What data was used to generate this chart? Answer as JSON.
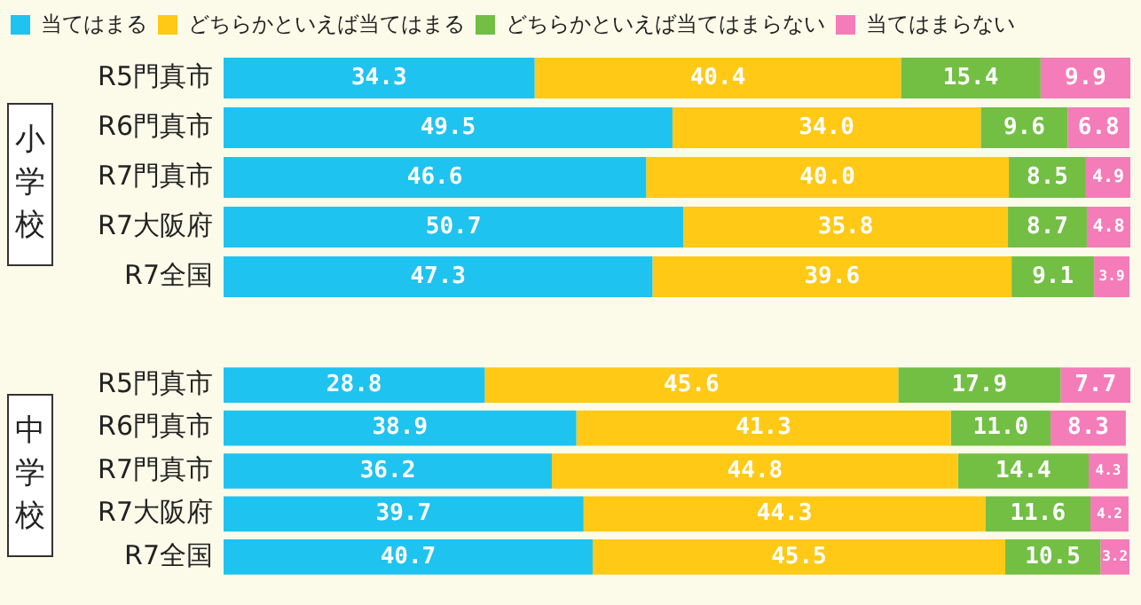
{
  "chart_data": [
    {
      "type": "bar",
      "orientation": "horizontal",
      "stacked": true,
      "ylabel": "小学校",
      "legend": "top left",
      "tick_labels": "y",
      "grid": false,
      "xlim": [
        0,
        100
      ],
      "categories": [
        "R5門真市",
        "R6門真市",
        "R7門真市",
        "R7大阪府",
        "R7全国"
      ],
      "series": [
        {
          "name": "当てはまる",
          "color": "#1ec3f0",
          "values": [
            34.3,
            49.5,
            46.6,
            50.7,
            47.3
          ],
          "value_labels": [
            "34.3",
            "49.5",
            "46.6",
            "50.7",
            "47.3"
          ]
        },
        {
          "name": "どちらかといえば当てはまる",
          "color": "#ffc915",
          "values": [
            40.4,
            34.0,
            40.0,
            35.8,
            39.6
          ],
          "value_labels": [
            "40.4",
            "34.0",
            "40.0",
            "35.8",
            "39.6"
          ]
        },
        {
          "name": "どちらかといえば当てはまらない",
          "color": "#72bf44",
          "values": [
            15.4,
            9.6,
            8.5,
            8.7,
            9.1
          ],
          "value_labels": [
            "15.4",
            "9.6",
            "8.5",
            "8.7",
            "9.1"
          ]
        },
        {
          "name": "当てはまらない",
          "color": "#f47cb8",
          "values": [
            9.9,
            6.8,
            4.9,
            4.8,
            3.9
          ],
          "value_labels": [
            "9.9",
            "6.8",
            "4.9",
            "4.8",
            "3.9"
          ]
        }
      ]
    },
    {
      "type": "bar",
      "orientation": "horizontal",
      "stacked": true,
      "ylabel": "中学校",
      "legend": false,
      "tick_labels": "y",
      "grid": false,
      "xlim": [
        0,
        100
      ],
      "categories": [
        "R5門真市",
        "R6門真市",
        "R7門真市",
        "R7大阪府",
        "R7全国"
      ],
      "series": [
        {
          "color": "#1ec3f0",
          "values": [
            28.8,
            38.9,
            36.2,
            39.7,
            40.7
          ],
          "value_labels": [
            "28.8",
            "38.9",
            "36.2",
            "39.7",
            "40.7"
          ]
        },
        {
          "color": "#ffc915",
          "values": [
            45.6,
            41.3,
            44.8,
            44.3,
            45.5
          ],
          "value_labels": [
            "45.6",
            "41.3",
            "44.8",
            "44.3",
            "45.5"
          ]
        },
        {
          "color": "#72bf44",
          "values": [
            17.9,
            11.0,
            14.4,
            11.6,
            10.5
          ],
          "value_labels": [
            "17.9",
            "11.0",
            "14.4",
            "11.6",
            "10.5"
          ]
        },
        {
          "color": "#f47cb8",
          "values": [
            7.7,
            8.3,
            4.3,
            4.2,
            3.2
          ],
          "value_labels": [
            "7.7",
            "8.3",
            "4.3",
            "4.2",
            "3.2"
          ]
        }
      ]
    }
  ]
}
